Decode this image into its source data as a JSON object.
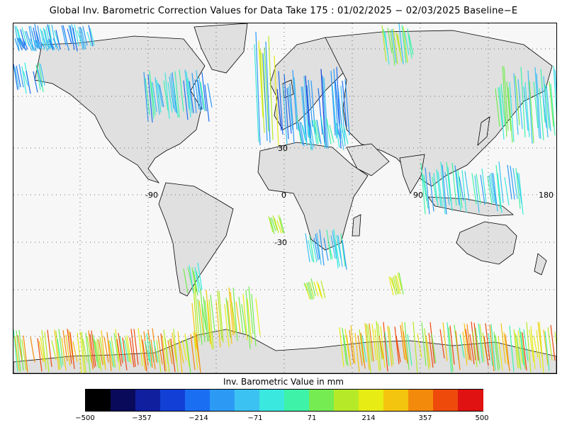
{
  "title": "Global Inv. Barometric Correction Values for Data Take 175 : 01/02/2025 − 02/03/2025 Baseline−E",
  "map": {
    "latitude_labels": [
      "30",
      "0",
      "-30"
    ],
    "longitude_labels": [
      "-90",
      "0",
      "90",
      "180"
    ],
    "land_color": "#e0e0e0",
    "ocean_color": "#f7f7f7",
    "coastline_color": "#000000"
  },
  "colorbar": {
    "title": "Inv. Barometric Value in mm",
    "ticks": [
      "−500",
      "−357",
      "−214",
      "−71",
      "71",
      "214",
      "357",
      "500"
    ],
    "range": [
      -500,
      500
    ],
    "colors": [
      "#000000",
      "#0a0a5a",
      "#0f1f9e",
      "#1240d6",
      "#1a6ef2",
      "#2c9af5",
      "#3cc2f2",
      "#3ae8e0",
      "#3ef2a8",
      "#74ec52",
      "#b6ea28",
      "#e6ec14",
      "#f4c50e",
      "#f48a0c",
      "#ee4a0c",
      "#e01212"
    ]
  }
}
